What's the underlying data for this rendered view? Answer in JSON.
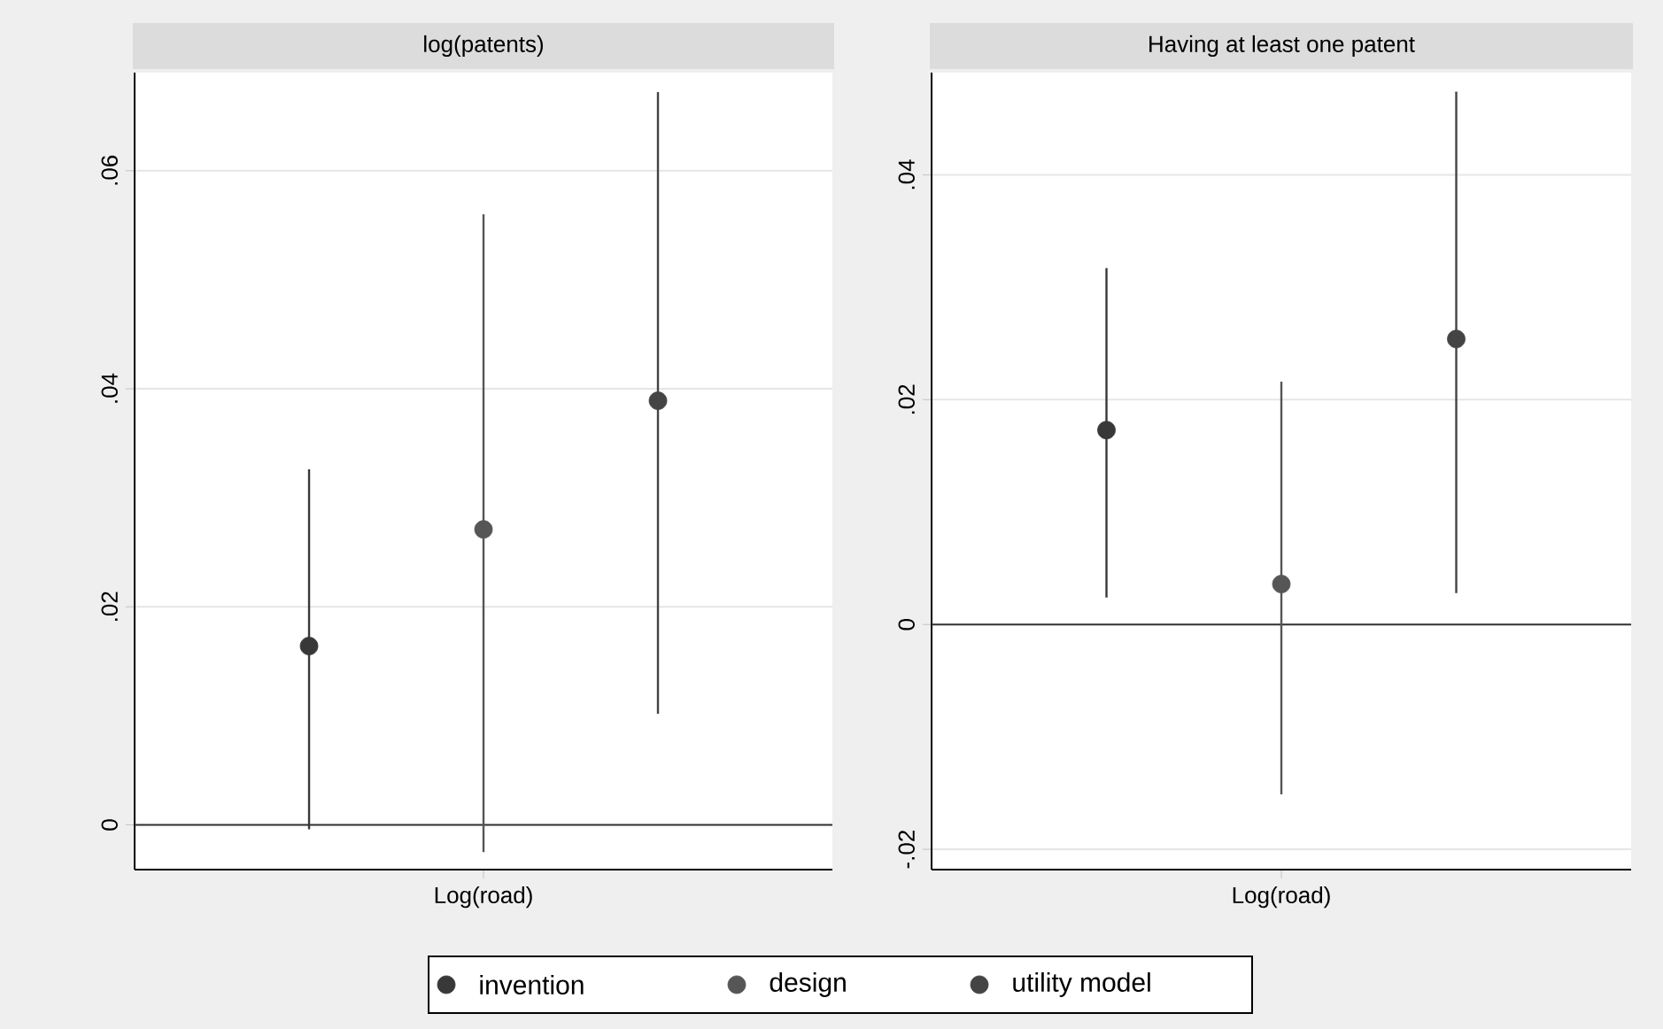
{
  "chart_data": [
    {
      "type": "scatter",
      "title": "log(patents)",
      "categories": [
        "Log(road)"
      ],
      "series": [
        {
          "name": "invention",
          "color": "#383838",
          "values": [
            0.0164
          ],
          "errors": [
            [
              -0.0004,
              0.0326
            ]
          ]
        },
        {
          "name": "design",
          "color": "#565656",
          "values": [
            0.0271
          ],
          "errors": [
            [
              -0.0025,
              0.056
            ]
          ]
        },
        {
          "name": "utility model",
          "color": "#444444",
          "values": [
            0.0389
          ],
          "errors": [
            [
              0.0102,
              0.0672
            ]
          ]
        }
      ],
      "ylim": [
        -0.0041,
        0.069
      ],
      "yticks": [
        0,
        {
          "value": 0.02,
          "label": ".02"
        },
        {
          "value": 0.04,
          "label": ".04"
        },
        {
          "value": 0.06,
          "label": ".06"
        }
      ],
      "ref_lines": [
        {
          "axis": "y",
          "value": 0,
          "color": "#333333"
        }
      ],
      "grid": "y",
      "marker": "circle",
      "legend": "bottom"
    },
    {
      "type": "scatter",
      "title": "Having at least one patent",
      "categories": [
        "Log(road)"
      ],
      "series": [
        {
          "color": "#383838",
          "values": [
            0.0173
          ],
          "errors": [
            [
              0.0024,
              0.0317
            ]
          ]
        },
        {
          "color": "#565656",
          "values": [
            0.0036
          ],
          "errors": [
            [
              -0.0151,
              0.0216
            ]
          ]
        },
        {
          "color": "#444444",
          "values": [
            0.0254
          ],
          "errors": [
            [
              0.0028,
              0.0474
            ]
          ]
        }
      ],
      "ylim": [
        -0.0218,
        0.0491
      ],
      "yticks": [
        {
          "value": -0.02,
          "label": "-.02"
        },
        0,
        {
          "value": 0.02,
          "label": ".02"
        },
        {
          "value": 0.04,
          "label": ".04"
        }
      ],
      "ref_lines": [
        {
          "axis": "y",
          "value": 0,
          "color": "#333333"
        }
      ],
      "grid": "y",
      "marker": "circle"
    }
  ]
}
